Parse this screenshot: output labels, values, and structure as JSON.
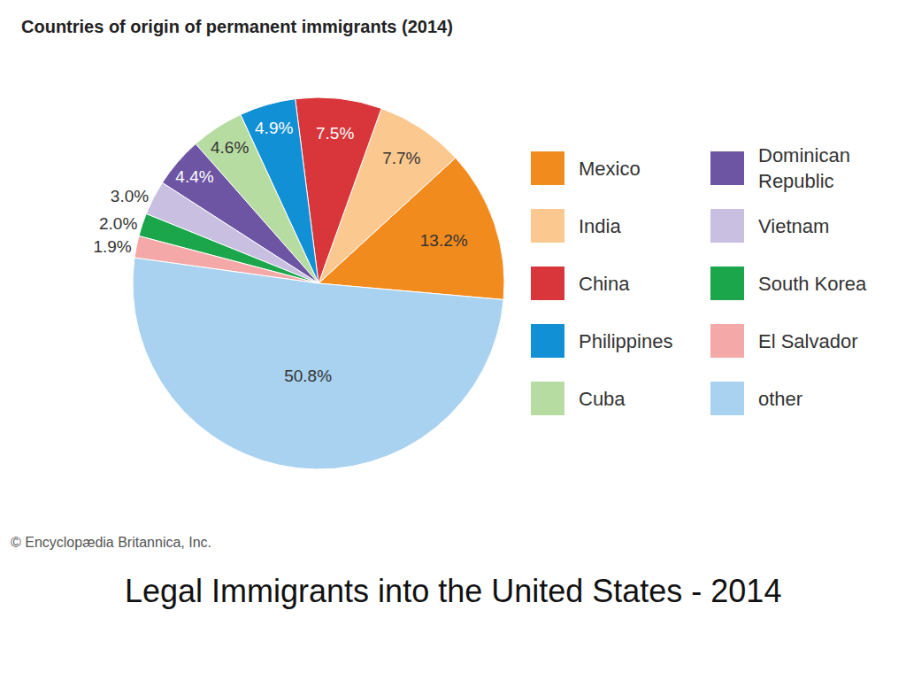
{
  "chart_data": {
    "type": "pie",
    "title": "Countries of origin of permanent immigrants (2014)",
    "categories": [
      "Mexico",
      "India",
      "China",
      "Philippines",
      "Cuba",
      "Dominican Republic",
      "Vietnam",
      "South Korea",
      "El Salvador",
      "other"
    ],
    "values": [
      13.2,
      7.7,
      7.5,
      4.9,
      4.6,
      4.4,
      3.0,
      2.0,
      1.9,
      50.8
    ],
    "value_labels": [
      "13.2%",
      "7.7%",
      "7.5%",
      "4.9%",
      "4.6%",
      "4.4%",
      "3.0%",
      "2.0%",
      "1.9%",
      "50.8%"
    ],
    "colors": [
      "#f18b1e",
      "#fbc98f",
      "#d8363b",
      "#1290d5",
      "#b7dca2",
      "#6d55a4",
      "#c9bfe1",
      "#1ba64b",
      "#f4a8a7",
      "#a9d2f0"
    ],
    "data_labels": true,
    "legend": "right",
    "annotations": [
      "© Encyclopædia Britannica, Inc.",
      "Legal Immigrants into the United States - 2014"
    ]
  }
}
